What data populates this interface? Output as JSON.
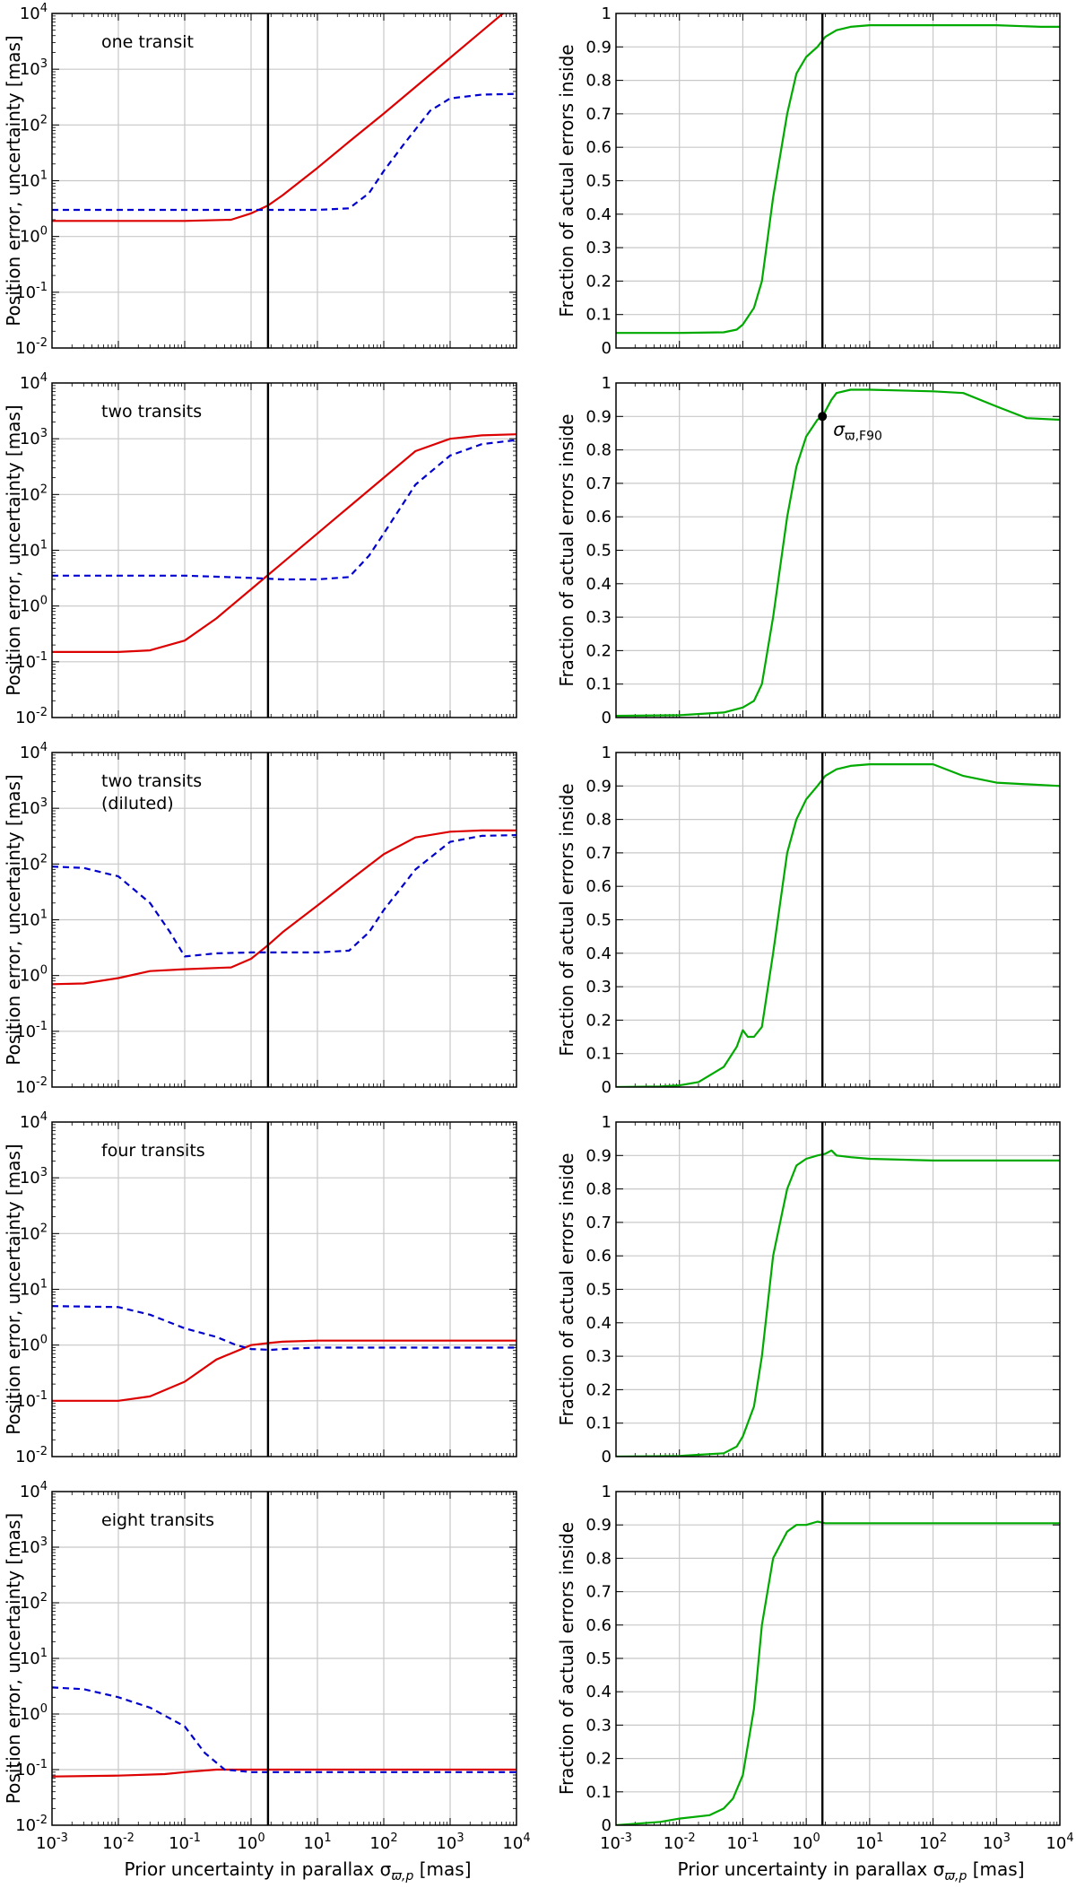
{
  "labels": {
    "left_ylabel": "Position error, uncertainty [mas]",
    "right_ylabel": "Fraction of actual errors inside",
    "xlabel_main": "Prior uncertainty in parallax σ",
    "xlabel_sub": "ϖ,p",
    "xlabel_unit": " [mas]",
    "annotation_main": "σ",
    "annotation_sub": "ϖ,F90"
  },
  "colors": {
    "actual_error_line": "#dd0000",
    "uncertainty_line": "#0000cc",
    "fraction_line": "#00aa00",
    "vertical_marker": "#000000",
    "grid": "#c8c8c8"
  },
  "chart_data": [
    {
      "type": "line",
      "panel": "left",
      "row": 0,
      "annotation": "one transit",
      "xscale": "log",
      "yscale": "log",
      "xlim": [
        0.001,
        10000
      ],
      "ylim": [
        0.01,
        10000
      ],
      "xticks": [
        "10-3",
        "10-2",
        "10-1",
        "100",
        "101",
        "102",
        "103",
        "104"
      ],
      "yticks": [
        "10-2",
        "10-1",
        "100",
        "101",
        "102",
        "103",
        "104"
      ],
      "vline_x": 1.8,
      "series": [
        {
          "style": "solid-red",
          "x": [
            0.001,
            0.01,
            0.1,
            0.5,
            1,
            1.8,
            3,
            10,
            30,
            100,
            300,
            1000,
            3000,
            10000
          ],
          "y": [
            1.9,
            1.9,
            1.9,
            2.0,
            2.6,
            3.6,
            5.5,
            17,
            50,
            160,
            480,
            1600,
            4800,
            16000
          ]
        },
        {
          "style": "dashed-blue",
          "x": [
            0.001,
            0.01,
            0.1,
            1,
            10,
            30,
            60,
            100,
            200,
            500,
            1000,
            3000,
            10000
          ],
          "y": [
            3,
            3,
            3,
            3,
            3,
            3.2,
            6,
            15,
            45,
            180,
            300,
            350,
            360
          ]
        }
      ]
    },
    {
      "type": "line",
      "panel": "right",
      "row": 0,
      "xscale": "log",
      "yscale": "linear",
      "xlim": [
        0.001,
        10000
      ],
      "ylim": [
        0,
        1
      ],
      "xticks": [
        "10-3",
        "10-2",
        "10-1",
        "100",
        "101",
        "102",
        "103",
        "104"
      ],
      "yticks": [
        "0",
        "0.1",
        "0.2",
        "0.3",
        "0.4",
        "0.5",
        "0.6",
        "0.7",
        "0.8",
        "0.9",
        "1"
      ],
      "vline_x": 1.8,
      "series": [
        {
          "style": "solid-green",
          "x": [
            0.001,
            0.01,
            0.05,
            0.08,
            0.1,
            0.15,
            0.2,
            0.3,
            0.5,
            0.7,
            1,
            1.5,
            2,
            3,
            5,
            10,
            100,
            1000,
            5000,
            10000
          ],
          "y": [
            0.045,
            0.045,
            0.047,
            0.055,
            0.07,
            0.12,
            0.2,
            0.45,
            0.7,
            0.82,
            0.87,
            0.9,
            0.93,
            0.95,
            0.96,
            0.965,
            0.965,
            0.965,
            0.96,
            0.96
          ]
        }
      ]
    },
    {
      "type": "line",
      "panel": "left",
      "row": 1,
      "annotation": "two transits",
      "xscale": "log",
      "yscale": "log",
      "xlim": [
        0.001,
        10000
      ],
      "ylim": [
        0.01,
        10000
      ],
      "xticks": [
        "10-3",
        "10-2",
        "10-1",
        "100",
        "101",
        "102",
        "103",
        "104"
      ],
      "yticks": [
        "10-2",
        "10-1",
        "100",
        "101",
        "102",
        "103",
        "104"
      ],
      "vline_x": 1.8,
      "series": [
        {
          "style": "solid-red",
          "x": [
            0.001,
            0.01,
            0.03,
            0.1,
            0.3,
            1,
            3,
            10,
            30,
            100,
            300,
            1000,
            3000,
            10000
          ],
          "y": [
            0.15,
            0.15,
            0.16,
            0.24,
            0.6,
            2,
            6,
            20,
            60,
            200,
            600,
            1000,
            1150,
            1200
          ]
        },
        {
          "style": "dashed-blue",
          "x": [
            0.001,
            0.01,
            0.1,
            1,
            3,
            10,
            30,
            60,
            100,
            300,
            1000,
            3000,
            10000
          ],
          "y": [
            3.5,
            3.5,
            3.5,
            3.2,
            3,
            3,
            3.3,
            8,
            20,
            150,
            500,
            800,
            950
          ]
        }
      ]
    },
    {
      "type": "line",
      "panel": "right",
      "row": 1,
      "xscale": "log",
      "yscale": "linear",
      "xlim": [
        0.001,
        10000
      ],
      "ylim": [
        0,
        1
      ],
      "xticks": [
        "10-3",
        "10-2",
        "10-1",
        "100",
        "101",
        "102",
        "103",
        "104"
      ],
      "yticks": [
        "0",
        "0.1",
        "0.2",
        "0.3",
        "0.4",
        "0.5",
        "0.6",
        "0.7",
        "0.8",
        "0.9",
        "1"
      ],
      "vline_x": 1.8,
      "marker": {
        "x": 1.8,
        "y": 0.9
      },
      "series": [
        {
          "style": "solid-green",
          "x": [
            0.001,
            0.01,
            0.05,
            0.1,
            0.15,
            0.2,
            0.3,
            0.5,
            0.7,
            1,
            1.5,
            1.8,
            2.5,
            3,
            5,
            10,
            100,
            300,
            1000,
            3000,
            10000
          ],
          "y": [
            0.005,
            0.007,
            0.015,
            0.03,
            0.05,
            0.1,
            0.3,
            0.6,
            0.75,
            0.84,
            0.89,
            0.9,
            0.95,
            0.97,
            0.98,
            0.98,
            0.975,
            0.97,
            0.93,
            0.895,
            0.89
          ]
        }
      ]
    },
    {
      "type": "line",
      "panel": "left",
      "row": 2,
      "annotation": "two transits\n(diluted)",
      "xscale": "log",
      "yscale": "log",
      "xlim": [
        0.001,
        10000
      ],
      "ylim": [
        0.01,
        10000
      ],
      "xticks": [
        "10-3",
        "10-2",
        "10-1",
        "100",
        "101",
        "102",
        "103",
        "104"
      ],
      "yticks": [
        "10-2",
        "10-1",
        "100",
        "101",
        "102",
        "103",
        "104"
      ],
      "vline_x": 1.8,
      "series": [
        {
          "style": "solid-red",
          "x": [
            0.001,
            0.003,
            0.01,
            0.03,
            0.1,
            0.5,
            1,
            1.8,
            3,
            10,
            30,
            100,
            300,
            1000,
            3000,
            10000
          ],
          "y": [
            0.7,
            0.72,
            0.9,
            1.2,
            1.3,
            1.4,
            2,
            3.5,
            6,
            18,
            50,
            150,
            300,
            380,
            400,
            400
          ]
        },
        {
          "style": "dashed-blue",
          "x": [
            0.001,
            0.003,
            0.01,
            0.03,
            0.06,
            0.1,
            0.3,
            1,
            3,
            10,
            30,
            60,
            100,
            300,
            1000,
            3000,
            10000
          ],
          "y": [
            90,
            85,
            60,
            20,
            6,
            2.2,
            2.5,
            2.6,
            2.6,
            2.6,
            2.8,
            6,
            15,
            80,
            250,
            320,
            330
          ]
        }
      ]
    },
    {
      "type": "line",
      "panel": "right",
      "row": 2,
      "xscale": "log",
      "yscale": "linear",
      "xlim": [
        0.001,
        10000
      ],
      "ylim": [
        0,
        1
      ],
      "xticks": [
        "10-3",
        "10-2",
        "10-1",
        "100",
        "101",
        "102",
        "103",
        "104"
      ],
      "yticks": [
        "0",
        "0.1",
        "0.2",
        "0.3",
        "0.4",
        "0.5",
        "0.6",
        "0.7",
        "0.8",
        "0.9",
        "1"
      ],
      "vline_x": 1.8,
      "series": [
        {
          "style": "solid-green",
          "x": [
            0.001,
            0.005,
            0.01,
            0.02,
            0.05,
            0.08,
            0.1,
            0.12,
            0.15,
            0.2,
            0.3,
            0.5,
            0.7,
            1,
            1.5,
            2,
            3,
            5,
            10,
            100,
            300,
            1000,
            3000,
            10000
          ],
          "y": [
            0.0,
            0.002,
            0.005,
            0.015,
            0.06,
            0.12,
            0.17,
            0.15,
            0.15,
            0.18,
            0.4,
            0.7,
            0.8,
            0.86,
            0.9,
            0.93,
            0.95,
            0.96,
            0.965,
            0.965,
            0.93,
            0.91,
            0.905,
            0.9
          ]
        }
      ]
    },
    {
      "type": "line",
      "panel": "left",
      "row": 3,
      "annotation": "four transits",
      "xscale": "log",
      "yscale": "log",
      "xlim": [
        0.001,
        10000
      ],
      "ylim": [
        0.01,
        10000
      ],
      "xticks": [
        "10-3",
        "10-2",
        "10-1",
        "100",
        "101",
        "102",
        "103",
        "104"
      ],
      "yticks": [
        "10-2",
        "10-1",
        "100",
        "101",
        "102",
        "103",
        "104"
      ],
      "vline_x": 1.8,
      "series": [
        {
          "style": "solid-red",
          "x": [
            0.001,
            0.01,
            0.03,
            0.1,
            0.3,
            1,
            2,
            3,
            10,
            100,
            1000,
            10000
          ],
          "y": [
            0.1,
            0.1,
            0.12,
            0.22,
            0.55,
            1.0,
            1.1,
            1.15,
            1.2,
            1.2,
            1.2,
            1.2
          ]
        },
        {
          "style": "dashed-blue",
          "x": [
            0.001,
            0.01,
            0.03,
            0.1,
            0.3,
            0.6,
            1,
            2,
            3,
            10,
            100,
            1000,
            10000
          ],
          "y": [
            5,
            4.8,
            3.5,
            2,
            1.4,
            1.0,
            0.85,
            0.82,
            0.85,
            0.9,
            0.9,
            0.9,
            0.9
          ]
        }
      ]
    },
    {
      "type": "line",
      "panel": "right",
      "row": 3,
      "xscale": "log",
      "yscale": "linear",
      "xlim": [
        0.001,
        10000
      ],
      "ylim": [
        0,
        1
      ],
      "xticks": [
        "10-3",
        "10-2",
        "10-1",
        "100",
        "101",
        "102",
        "103",
        "104"
      ],
      "yticks": [
        "0",
        "0.1",
        "0.2",
        "0.3",
        "0.4",
        "0.5",
        "0.6",
        "0.7",
        "0.8",
        "0.9",
        "1"
      ],
      "vline_x": 1.8,
      "series": [
        {
          "style": "solid-green",
          "x": [
            0.001,
            0.01,
            0.05,
            0.08,
            0.1,
            0.15,
            0.2,
            0.3,
            0.5,
            0.7,
            1,
            1.5,
            2,
            2.5,
            3,
            5,
            10,
            100,
            1000,
            10000
          ],
          "y": [
            0.0,
            0.002,
            0.01,
            0.03,
            0.06,
            0.15,
            0.3,
            0.6,
            0.8,
            0.87,
            0.89,
            0.9,
            0.905,
            0.915,
            0.9,
            0.895,
            0.89,
            0.885,
            0.885,
            0.885
          ]
        }
      ]
    },
    {
      "type": "line",
      "panel": "left",
      "row": 4,
      "annotation": "eight transits",
      "xscale": "log",
      "yscale": "log",
      "xlim": [
        0.001,
        10000
      ],
      "ylim": [
        0.01,
        10000
      ],
      "xticks": [
        "10-3",
        "10-2",
        "10-1",
        "100",
        "101",
        "102",
        "103",
        "104"
      ],
      "yticks": [
        "10-2",
        "10-1",
        "100",
        "101",
        "102",
        "103",
        "104"
      ],
      "vline_x": 1.8,
      "series": [
        {
          "style": "solid-red",
          "x": [
            0.001,
            0.01,
            0.05,
            0.1,
            0.3,
            1,
            10,
            100,
            1000,
            10000
          ],
          "y": [
            0.075,
            0.078,
            0.083,
            0.09,
            0.1,
            0.1,
            0.1,
            0.1,
            0.1,
            0.1
          ]
        },
        {
          "style": "dashed-blue",
          "x": [
            0.001,
            0.003,
            0.01,
            0.03,
            0.1,
            0.2,
            0.4,
            1,
            3,
            10,
            100,
            1000,
            10000
          ],
          "y": [
            3,
            2.8,
            2,
            1.3,
            0.6,
            0.2,
            0.1,
            0.09,
            0.09,
            0.09,
            0.09,
            0.09,
            0.09
          ]
        }
      ]
    },
    {
      "type": "line",
      "panel": "right",
      "row": 4,
      "xscale": "log",
      "yscale": "linear",
      "xlim": [
        0.001,
        10000
      ],
      "ylim": [
        0,
        1
      ],
      "xticks": [
        "10-3",
        "10-2",
        "10-1",
        "100",
        "101",
        "102",
        "103",
        "104"
      ],
      "yticks": [
        "0",
        "0.1",
        "0.2",
        "0.3",
        "0.4",
        "0.5",
        "0.6",
        "0.7",
        "0.8",
        "0.9",
        "1"
      ],
      "vline_x": 1.8,
      "series": [
        {
          "style": "solid-green",
          "x": [
            0.001,
            0.005,
            0.01,
            0.03,
            0.05,
            0.07,
            0.1,
            0.15,
            0.2,
            0.3,
            0.5,
            0.7,
            1,
            1.5,
            2,
            3,
            10,
            100,
            1000,
            10000
          ],
          "y": [
            0.0,
            0.01,
            0.02,
            0.03,
            0.05,
            0.08,
            0.15,
            0.35,
            0.6,
            0.8,
            0.88,
            0.9,
            0.9,
            0.91,
            0.905,
            0.905,
            0.905,
            0.905,
            0.905,
            0.905
          ]
        }
      ]
    }
  ]
}
